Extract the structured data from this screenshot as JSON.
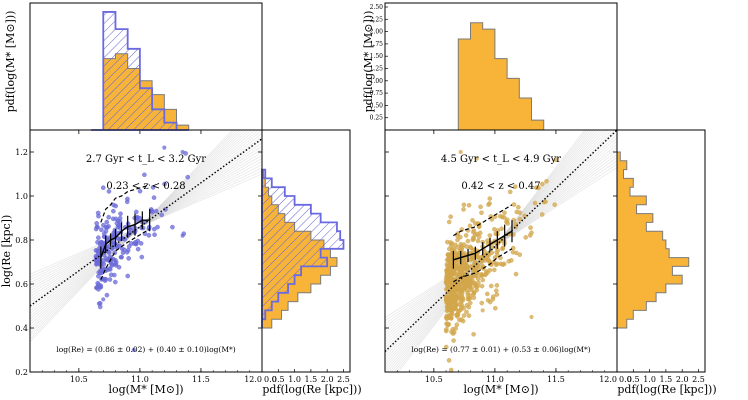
{
  "chart_data": [
    {
      "id": "left",
      "type": "scatter",
      "title": "2.7 Gyr < t_L < 3.2 Gyr",
      "subtitle": "0.23 < z < 0.28",
      "xlabel": "log(M* [M⊙])",
      "ylabel": "log(Re [kpc])",
      "top_hist_ylabel": "pdf(log(M* [M⊙]))",
      "right_hist_xlabel": "pdf(log(Re [kpc]))",
      "equation": "log(Re) = (0.86 ± 0.02) + (0.40 ± 0.10)log(M*)",
      "xlim": [
        10.1,
        12.0
      ],
      "ylim": [
        0.2,
        1.3
      ],
      "x_ticks": [
        "10.5",
        "11.0",
        "11.5",
        "12.0"
      ],
      "y_ticks": [
        "0.2",
        "0.4",
        "0.6",
        "0.8",
        "1.0",
        "1.2"
      ],
      "hist_x_ticks": [
        "0.0",
        "0.5",
        "1.0",
        "1.5",
        "2.0",
        "2.5"
      ],
      "hist_xlim": [
        0,
        2.7
      ],
      "top_hist_ylim": [
        0,
        2.5
      ],
      "top_hist_yticks": [],
      "point_color": "#6a6ad8",
      "fill_color": "#f8b438",
      "hatch_color": "#6666d8",
      "fit": {
        "intercept": 0.86,
        "slope": 0.4,
        "pivot": 11.0
      },
      "fit_bundle": {
        "pivot_y": 0.86,
        "slope_lo": 0.24,
        "slope_hi": 0.58
      },
      "median_trend": {
        "x": [
          10.68,
          10.72,
          10.76,
          10.8,
          10.85,
          10.9,
          10.96,
          11.02,
          11.08
        ],
        "y": [
          0.72,
          0.78,
          0.8,
          0.81,
          0.84,
          0.86,
          0.87,
          0.89,
          0.89
        ],
        "yerr": [
          0.05,
          0.04,
          0.03,
          0.04,
          0.04,
          0.05,
          0.05,
          0.04,
          0.05
        ],
        "p16": [
          0.62,
          0.67,
          0.71,
          0.75,
          0.77,
          0.79,
          0.81,
          0.83,
          0.85
        ],
        "p84": [
          0.88,
          0.94,
          0.96,
          0.99,
          1.0,
          1.02,
          1.03,
          1.04,
          1.05
        ]
      },
      "scatter": {
        "n": 230,
        "x_min": 10.64,
        "x_decay": 0.16,
        "x_max": 11.4,
        "y_sigma": 0.09,
        "seed": 7,
        "extra": [
          [
            11.2,
            1.22
          ],
          [
            11.35,
            1.2
          ],
          [
            10.95,
            0.3
          ],
          [
            11.35,
            0.82
          ],
          [
            10.7,
            0.53
          ]
        ]
      },
      "top_hist": {
        "edges": [
          10.6,
          10.7,
          10.8,
          10.9,
          11.0,
          11.1,
          11.2,
          11.3,
          11.4
        ],
        "filled": [
          0.0,
          1.45,
          1.55,
          1.25,
          1.0,
          0.72,
          0.42,
          0.1
        ],
        "hatched": [
          0.0,
          2.4,
          2.05,
          1.65,
          0.85,
          0.42,
          0.15,
          0.0
        ]
      },
      "right_hist": {
        "edges": [
          0.4,
          0.44,
          0.48,
          0.52,
          0.56,
          0.6,
          0.64,
          0.68,
          0.72,
          0.76,
          0.8,
          0.84,
          0.88,
          0.92,
          0.96,
          1.0,
          1.04,
          1.08,
          1.12
        ],
        "filled": [
          0.3,
          0.6,
          0.8,
          1.1,
          1.5,
          1.8,
          2.1,
          2.3,
          2.1,
          1.9,
          1.5,
          1.0,
          0.7,
          0.5,
          0.3,
          0.2,
          0.1,
          0.05
        ],
        "hatched": [
          0.0,
          0.1,
          0.3,
          0.5,
          0.8,
          1.0,
          1.2,
          2.0,
          1.8,
          2.5,
          2.4,
          2.3,
          1.8,
          1.5,
          1.0,
          0.7,
          0.3,
          0.1
        ]
      }
    },
    {
      "id": "right",
      "type": "scatter",
      "title": "4.5 Gyr < t_L < 4.9 Gyr",
      "subtitle": "0.42 < z < 0.47",
      "xlabel": "log(M* [M⊙])",
      "ylabel": "",
      "top_hist_ylabel": "pdf(log(M* [M⊙]))",
      "right_hist_xlabel": "pdf(log(Re [kpc]))",
      "equation": "log(Re) = (0.77 ± 0.01) + (0.53 ± 0.06)log(M*)",
      "xlim": [
        10.1,
        12.0
      ],
      "ylim": [
        0.2,
        1.3
      ],
      "x_ticks": [
        "10.5",
        "11.0",
        "11.5",
        "12.0"
      ],
      "y_ticks": [],
      "hist_x_ticks": [
        "0.0",
        "0.5",
        "1.0",
        "1.5",
        "2.0",
        "2.5"
      ],
      "hist_xlim": [
        0,
        2.7
      ],
      "top_hist_ylim": [
        0,
        2.5
      ],
      "top_hist_yticks": [
        "0.25",
        "0.50",
        "0.75",
        "1.00",
        "1.25",
        "1.50",
        "1.75",
        "2.00",
        "2.25",
        "2.50"
      ],
      "point_color": "#d2a64a",
      "fill_color": "#f8b438",
      "hatch_color": "",
      "fit": {
        "intercept": 0.77,
        "slope": 0.53,
        "pivot": 11.0
      },
      "fit_bundle": {
        "pivot_y": 0.77,
        "slope_lo": 0.36,
        "slope_hi": 0.72
      },
      "median_trend": {
        "x": [
          10.66,
          10.72,
          10.78,
          10.84,
          10.9,
          10.96,
          11.02,
          11.08,
          11.14
        ],
        "y": [
          0.71,
          0.72,
          0.73,
          0.74,
          0.76,
          0.78,
          0.8,
          0.82,
          0.84
        ],
        "yerr": [
          0.04,
          0.03,
          0.03,
          0.03,
          0.03,
          0.03,
          0.04,
          0.05,
          0.05
        ],
        "p16": [
          0.61,
          0.63,
          0.64,
          0.65,
          0.67,
          0.69,
          0.72,
          0.74,
          0.76
        ],
        "p84": [
          0.82,
          0.84,
          0.85,
          0.86,
          0.88,
          0.9,
          0.92,
          0.94,
          0.96
        ]
      },
      "scatter": {
        "n": 600,
        "x_min": 10.6,
        "x_decay": 0.2,
        "x_max": 11.5,
        "y_sigma": 0.1,
        "seed": 21,
        "extra": [
          [
            10.72,
            1.2
          ],
          [
            10.85,
            1.17
          ],
          [
            11.3,
            0.45
          ],
          [
            10.9,
            0.48
          ]
        ]
      },
      "top_hist": {
        "edges": [
          10.6,
          10.7,
          10.8,
          10.9,
          11.0,
          11.1,
          11.2,
          11.3,
          11.4
        ],
        "filled": [
          0.0,
          1.85,
          2.18,
          2.05,
          1.45,
          1.05,
          0.65,
          0.2
        ],
        "hatched": []
      },
      "right_hist": {
        "edges": [
          0.4,
          0.44,
          0.48,
          0.52,
          0.56,
          0.6,
          0.64,
          0.68,
          0.72,
          0.76,
          0.8,
          0.84,
          0.88,
          0.92,
          0.96,
          1.0,
          1.04,
          1.08,
          1.12,
          1.16,
          1.2
        ],
        "filled": [
          0.3,
          0.5,
          0.9,
          1.2,
          1.5,
          2.0,
          1.7,
          2.2,
          1.6,
          1.5,
          1.4,
          0.9,
          1.1,
          0.6,
          0.9,
          0.4,
          0.5,
          0.2,
          0.3,
          0.1
        ],
        "hatched": []
      }
    }
  ]
}
